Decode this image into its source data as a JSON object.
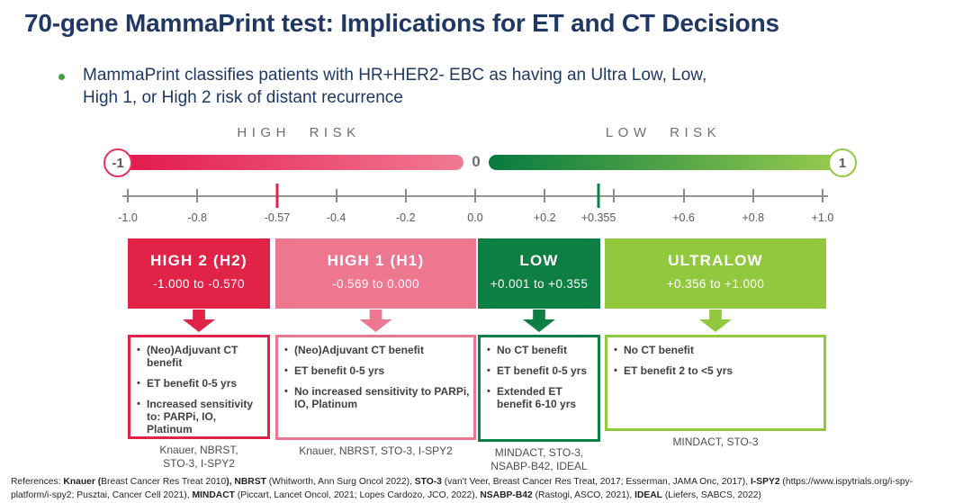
{
  "slide": {
    "title": "70-gene MammaPrint test: Implications for ET and CT Decisions",
    "subtitle_line1": "MammaPrint classifies patients with HR+HER2- EBC as having an Ultra Low, Low,",
    "subtitle_line2": "High 1, or High 2 risk of distant recurrence"
  },
  "scale": {
    "left_zone_label": "HIGH RISK",
    "right_zone_label": "LOW RISK",
    "bar_left_end_label": "-1",
    "bar_center_label": "0",
    "bar_right_end_label": "1",
    "colors": {
      "bar_negative_gradient": [
        "#E2174C",
        "#F27A92"
      ],
      "bar_positive_gradient": [
        "#077A40",
        "#98CB4E"
      ],
      "left_circle_border": "#E8315B",
      "right_circle_border": "#94C83F",
      "cutoff_red": "#E22348",
      "cutoff_green": "#0E7F43"
    },
    "axis": {
      "min": -1.0,
      "max": 1.0,
      "ticks": [
        {
          "value": -1.0,
          "label": "-1.0",
          "type": "normal"
        },
        {
          "value": -0.8,
          "label": "-0.8",
          "type": "normal"
        },
        {
          "value": -0.57,
          "label": "-0.57",
          "type": "red"
        },
        {
          "value": -0.4,
          "label": "-0.4",
          "type": "normal"
        },
        {
          "value": -0.2,
          "label": "-0.2",
          "type": "normal"
        },
        {
          "value": 0.0,
          "label": "0.0",
          "type": "normal"
        },
        {
          "value": 0.2,
          "label": "+0.2",
          "type": "normal"
        },
        {
          "value": 0.355,
          "label": "+0.355",
          "type": "green"
        },
        {
          "value": 0.4,
          "label": "",
          "type": "normal"
        },
        {
          "value": 0.6,
          "label": "+0.6",
          "type": "normal"
        },
        {
          "value": 0.8,
          "label": "+0.8",
          "type": "normal"
        },
        {
          "value": 1.0,
          "label": "+1.0",
          "type": "normal"
        }
      ]
    }
  },
  "categories": [
    {
      "name": "HIGH 2 (H2)",
      "range": "-1.000 to -0.570",
      "color": "#E22348",
      "items": [
        "(Neo)Adjuvant CT benefit",
        "ET benefit 0-5 yrs",
        "Increased sensitivity to: PARPi, IO, Platinum"
      ],
      "caption": "Knauer, NBRST,\nSTO-3, I-SPY2"
    },
    {
      "name": "HIGH 1 (H1)",
      "range": "-0.569 to 0.000",
      "color": "#EE7790",
      "items": [
        "(Neo)Adjuvant CT benefit",
        "ET benefit 0-5 yrs",
        "No increased sensitivity to PARPi, IO, Platinum"
      ],
      "caption": "Knauer, NBRST, STO-3, I-SPY2"
    },
    {
      "name": "LOW",
      "range": "+0.001 to +0.355",
      "color": "#0E7F43",
      "items": [
        "No CT benefit",
        "ET benefit 0-5 yrs",
        "Extended ET benefit 6-10 yrs"
      ],
      "caption": "MINDACT, STO-3,\nNSABP-B42, IDEAL"
    },
    {
      "name": "ULTRALOW",
      "range": "+0.356 to +1.000",
      "color": "#92C83E",
      "items": [
        "No CT benefit",
        "ET benefit 2 to <5 yrs"
      ],
      "caption": "MINDACT, STO-3"
    }
  ],
  "references": {
    "line1": [
      {
        "text": "References: ",
        "bold": false
      },
      {
        "text": "Knauer (",
        "bold": true
      },
      {
        "text": "Breast Cancer Res Treat 2010",
        "bold": false
      },
      {
        "text": "), NBRST",
        "bold": true
      },
      {
        "text": " (Whitworth, Ann Surg Oncol 2022), ",
        "bold": false
      },
      {
        "text": "STO-3",
        "bold": true
      },
      {
        "text": " (van't Veer, Breast Cancer Res Treat, 2017; Esserman, JAMA Onc, 2017), ",
        "bold": false
      },
      {
        "text": "I-SPY2",
        "bold": true
      },
      {
        "text": " (https://www.ispytrials.org/i-spy-",
        "bold": false
      }
    ],
    "line2": [
      {
        "text": "platform/i-spy2; Pusztai, Cancer Cell 2021), ",
        "bold": false
      },
      {
        "text": "MINDACT",
        "bold": true
      },
      {
        "text": " (Piccart, Lancet Oncol, 2021; Lopes Cardozo, JCO, 2022), ",
        "bold": false
      },
      {
        "text": "NSABP-B42",
        "bold": true
      },
      {
        "text": " (Rastogi, ASCO, 2021), ",
        "bold": false
      },
      {
        "text": "IDEAL",
        "bold": true
      },
      {
        "text": " (Liefers, SABCS, 2022)",
        "bold": false
      }
    ]
  }
}
